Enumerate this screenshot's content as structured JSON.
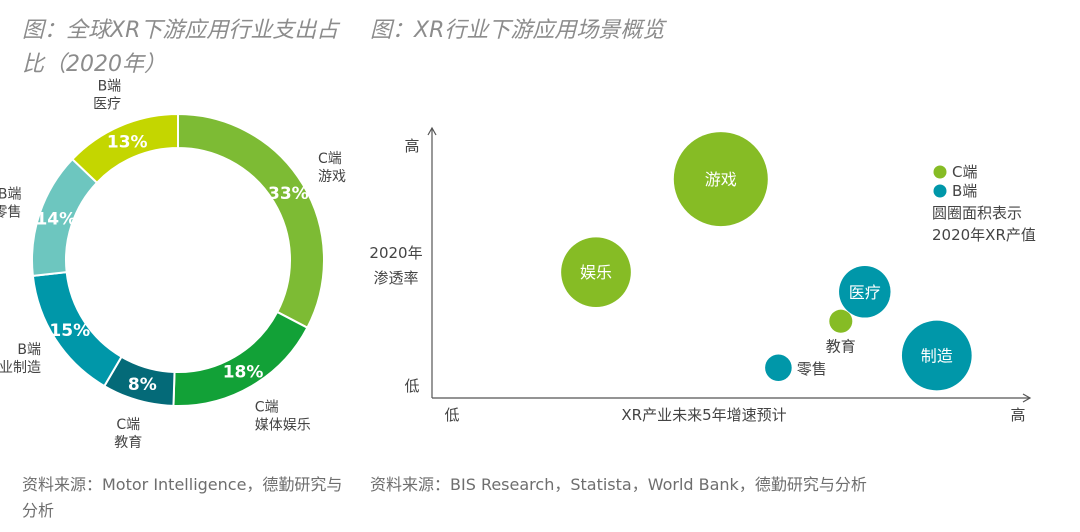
{
  "left_title": "图：全球XR下游应用行业支出占比（2020年）",
  "right_title": "图：XR行业下游应用场景概览",
  "left_source": "资料来源：Motor Intelligence，德勤研究与分析",
  "right_source": "资料来源：BIS Research，Statista，World Bank，德勤研究与分析",
  "colors": {
    "c_end": "#86bc25",
    "b_end": "#0097a9"
  },
  "chart_data": [
    {
      "type": "pie",
      "variant": "donut",
      "title": "全球XR下游应用行业支出占比（2020年）",
      "slices": [
        {
          "label_line1": "C端",
          "label_line2": "游戏",
          "value": 33,
          "value_label": "33%",
          "color": "#7dbb34"
        },
        {
          "label_line1": "C端",
          "label_line2": "媒体娱乐",
          "value": 18,
          "value_label": "18%",
          "color": "#12a137"
        },
        {
          "label_line1": "C端",
          "label_line2": "教育",
          "value": 8,
          "value_label": "8%",
          "color": "#046a78"
        },
        {
          "label_line1": "B端",
          "label_line2": "工业制造",
          "value": 15,
          "value_label": "15%",
          "color": "#0097a9"
        },
        {
          "label_line1": "B端",
          "label_line2": "零售",
          "value": 14,
          "value_label": "14%",
          "color": "#6dc6bf"
        },
        {
          "label_line1": "B端",
          "label_line2": "医疗",
          "value": 13,
          "value_label": "13%",
          "color": "#c4d600"
        }
      ]
    },
    {
      "type": "scatter",
      "variant": "bubble",
      "title": "XR行业下游应用场景概览",
      "xlabel": "XR产业未来5年增速预计",
      "ylabel_line1": "2020年",
      "ylabel_line2": "渗透率",
      "x_low": "低",
      "x_high": "高",
      "y_low": "低",
      "y_high": "高",
      "xlim": [
        0,
        100
      ],
      "ylim": [
        0,
        100
      ],
      "legend": [
        {
          "label": "C端",
          "group": "C"
        },
        {
          "label": "B端",
          "group": "B"
        }
      ],
      "legend_note_line1": "圆圈面积表示",
      "legend_note_line2": "2020年XR产值",
      "bubbles": [
        {
          "label": "游戏",
          "x": 46,
          "y": 82,
          "value": 100,
          "group": "C",
          "label_pos": "inside"
        },
        {
          "label": "娱乐",
          "x": 20,
          "y": 44,
          "value": 55,
          "group": "C",
          "label_pos": "inside"
        },
        {
          "label": "医疗",
          "x": 76,
          "y": 36,
          "value": 30,
          "group": "B",
          "label_pos": "inside"
        },
        {
          "label": "教育",
          "x": 71,
          "y": 24,
          "value": 6,
          "group": "C",
          "label_pos": "below"
        },
        {
          "label": "制造",
          "x": 91,
          "y": 10,
          "value": 55,
          "group": "B",
          "label_pos": "inside"
        },
        {
          "label": "零售",
          "x": 58,
          "y": 5,
          "value": 8,
          "group": "B",
          "label_pos": "right"
        }
      ]
    }
  ]
}
